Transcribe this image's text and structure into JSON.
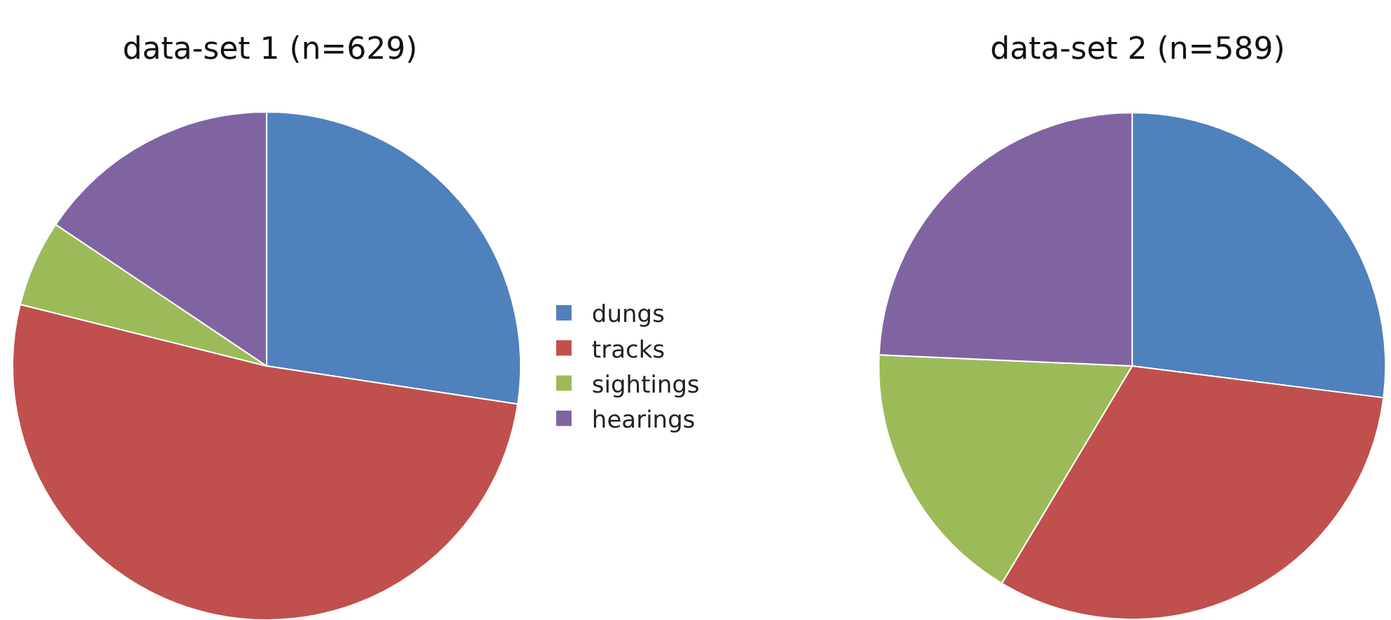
{
  "chart_data": [
    {
      "type": "pie",
      "title": "data-set 1 (n=629)",
      "categories": [
        "dungs",
        "tracks",
        "sightings",
        "hearings"
      ],
      "values": [
        27.4,
        51.5,
        5.5,
        15.6
      ],
      "colors": [
        "#4f81bd",
        "#c0504d",
        "#9bbb59",
        "#8064a2"
      ],
      "legend": "right"
    },
    {
      "type": "pie",
      "title": "data-set 2 (n=589)",
      "categories": [
        null,
        null,
        null,
        null
      ],
      "values": [
        27,
        31.6,
        17.1,
        24.3
      ],
      "colors": [
        "#4f81bd",
        "#c0504d",
        "#9bbb59",
        "#8064a2"
      ]
    }
  ]
}
